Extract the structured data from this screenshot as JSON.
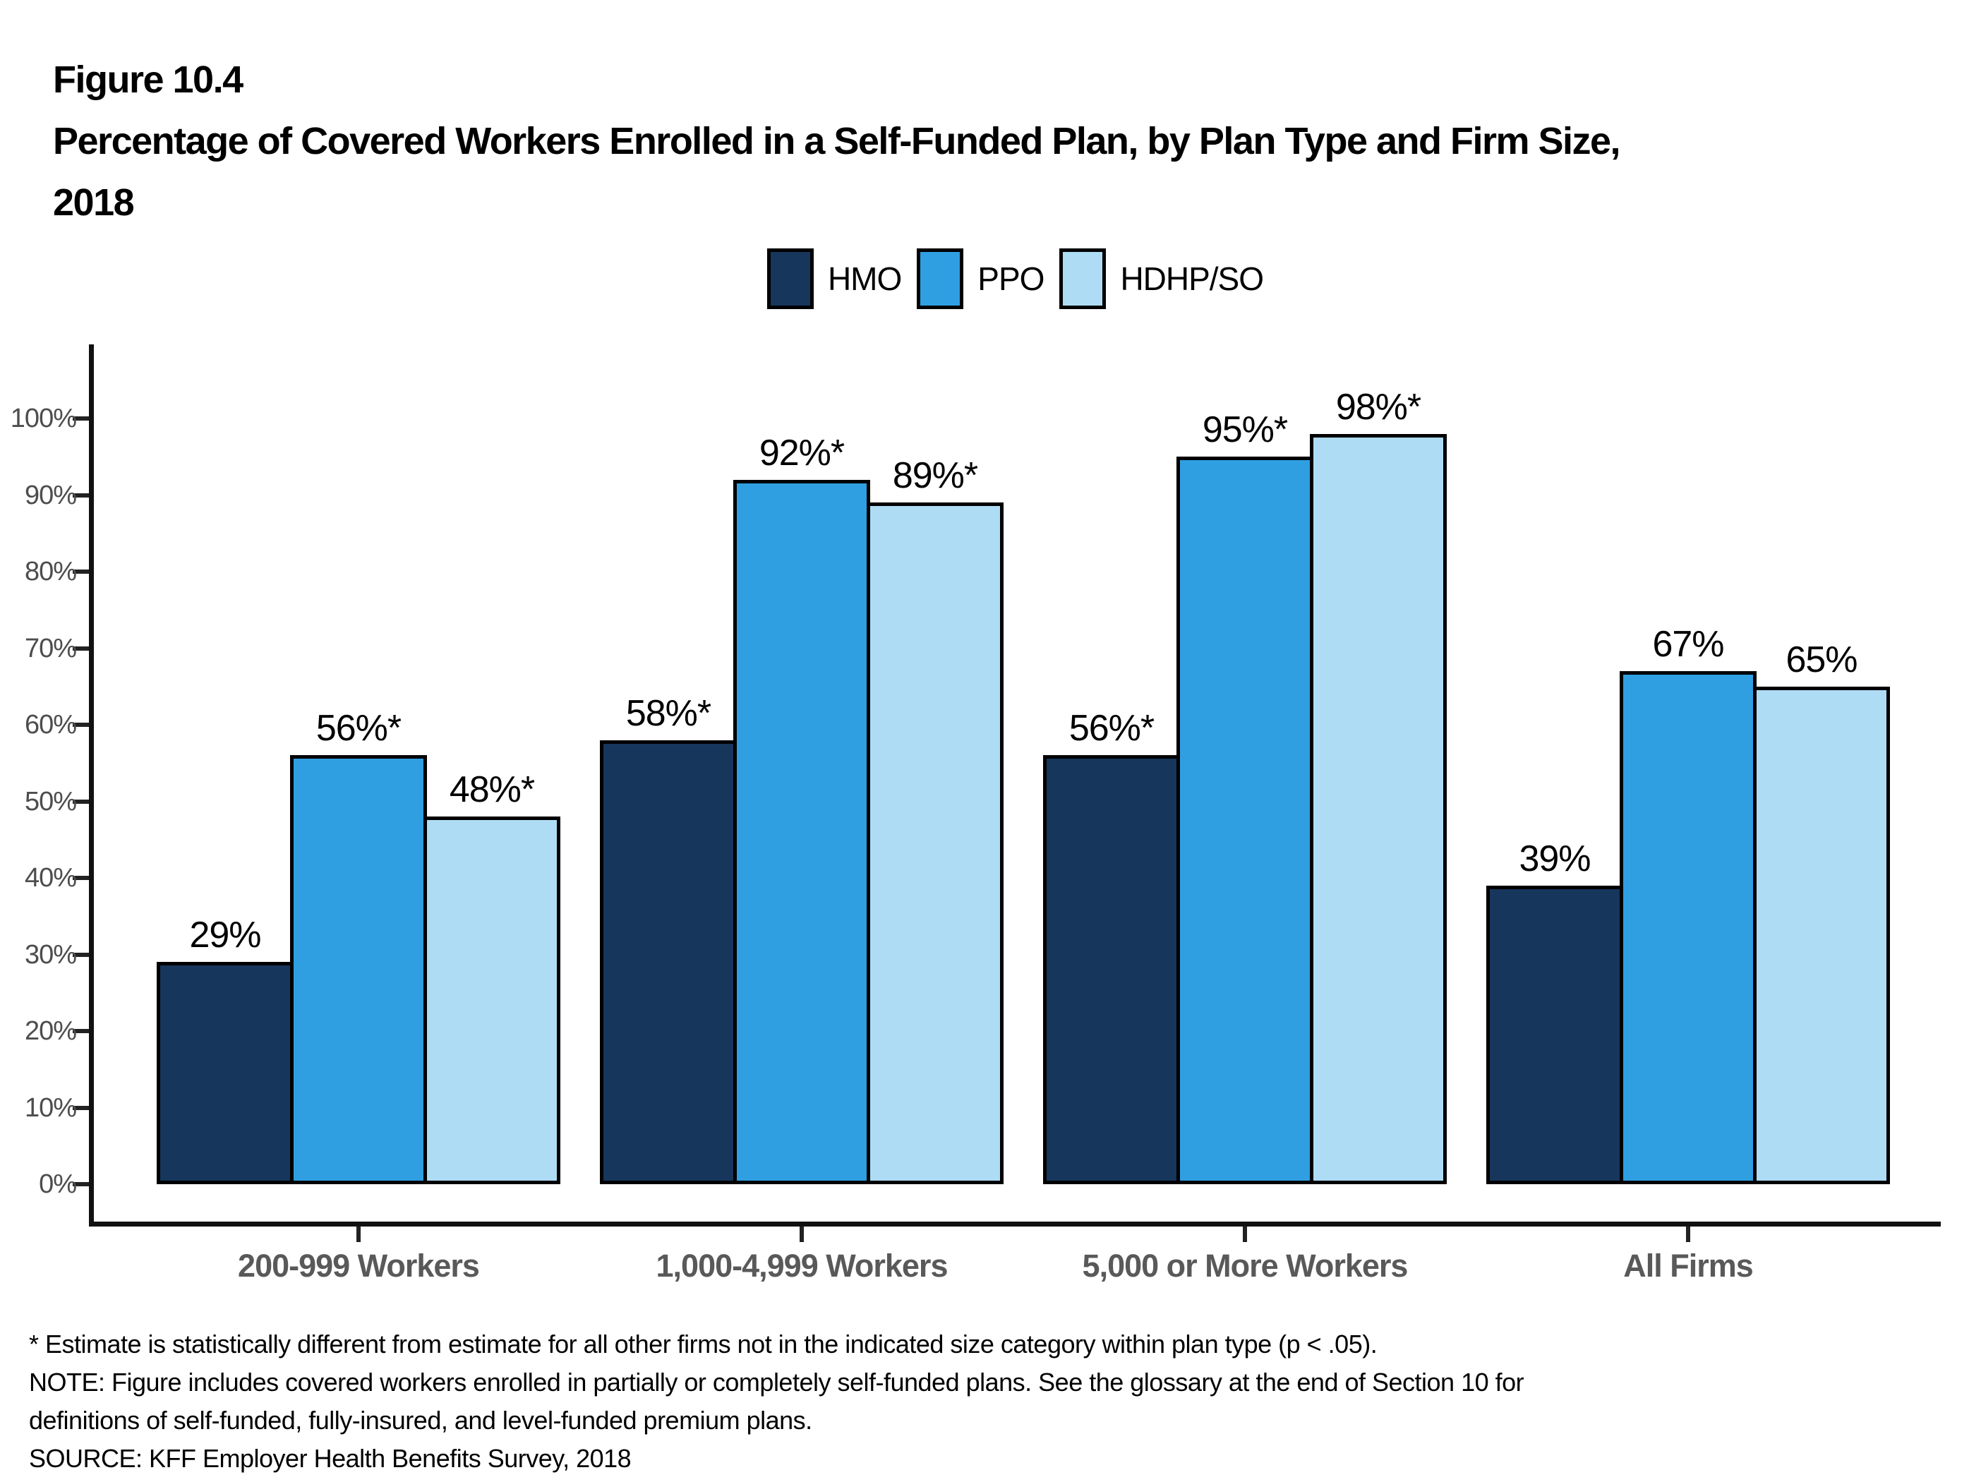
{
  "figure": {
    "label": "Figure 10.4",
    "title_lines": [
      "Percentage of Covered Workers Enrolled in a Self-Funded Plan, by Plan Type and Firm Size,",
      "2018"
    ]
  },
  "chart_data": {
    "type": "bar",
    "title": "Percentage of Covered Workers Enrolled in a Self-Funded Plan, by Plan Type and Firm Size, 2018",
    "categories": [
      "200-999 Workers",
      "1,000-4,999 Workers",
      "5,000 or More Workers",
      "All Firms"
    ],
    "series": [
      {
        "name": "HMO",
        "color": "#16365C",
        "values": [
          29,
          58,
          56,
          39
        ],
        "labels": [
          "29%",
          "58%*",
          "56%*",
          "39%"
        ]
      },
      {
        "name": "PPO",
        "color": "#2F9FE2",
        "values": [
          56,
          92,
          95,
          67
        ],
        "labels": [
          "56%*",
          "92%*",
          "95%*",
          "67%"
        ]
      },
      {
        "name": "HDHP/SO",
        "color": "#AEDCF5",
        "values": [
          48,
          89,
          98,
          65
        ],
        "labels": [
          "48%*",
          "89%*",
          "98%*",
          "65%"
        ]
      }
    ],
    "ylim": [
      0,
      100
    ],
    "ytick_step": 10,
    "ytick_labels": [
      "0%",
      "10%",
      "20%",
      "30%",
      "40%",
      "50%",
      "60%",
      "70%",
      "80%",
      "90%",
      "100%"
    ],
    "xlabel": "",
    "ylabel": "",
    "grid": false,
    "legend_position": "top-center"
  },
  "footnotes": {
    "lines": [
      "* Estimate is statistically different from estimate for all other firms not in the indicated size category within plan type (p < .05).",
      "NOTE: Figure includes covered workers enrolled in partially or completely self-funded plans. See the glossary at the end of Section 10 for",
      "definitions of self-funded, fully-insured, and level-funded premium plans.",
      "SOURCE: KFF Employer Health Benefits Survey, 2018"
    ]
  },
  "colors": {
    "axis": "#111111",
    "ytick_label": "#4d4d4d",
    "category_label": "#595959",
    "value_label": "#000000",
    "bar_border": "#000000"
  }
}
